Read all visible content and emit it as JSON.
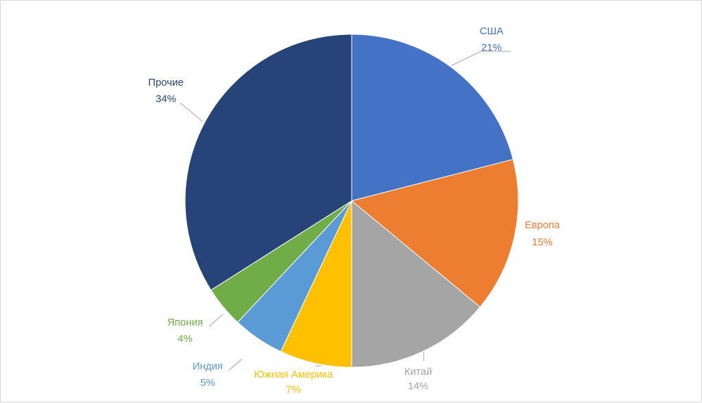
{
  "chart_data": {
    "type": "pie",
    "title": "",
    "slices": [
      {
        "label": "США",
        "value": 21,
        "value_label": "21%",
        "color": "#4472C4"
      },
      {
        "label": "Европа",
        "value": 15,
        "value_label": "15%",
        "color": "#ED7D31"
      },
      {
        "label": "Китай",
        "value": 14,
        "value_label": "14%",
        "color": "#A5A5A5"
      },
      {
        "label": "Южная Америка",
        "value": 7,
        "value_label": "7%",
        "color": "#FFC000"
      },
      {
        "label": "Индия",
        "value": 5,
        "value_label": "5%",
        "color": "#5B9BD5"
      },
      {
        "label": "Япония",
        "value": 4,
        "value_label": "4%",
        "color": "#70AD47"
      },
      {
        "label": "Прочие",
        "value": 34,
        "value_label": "34%",
        "color": "#264478"
      }
    ],
    "start_angle": "12 o'clock",
    "direction": "clockwise",
    "legend": "none",
    "data_labels": "outside with leader lines"
  }
}
